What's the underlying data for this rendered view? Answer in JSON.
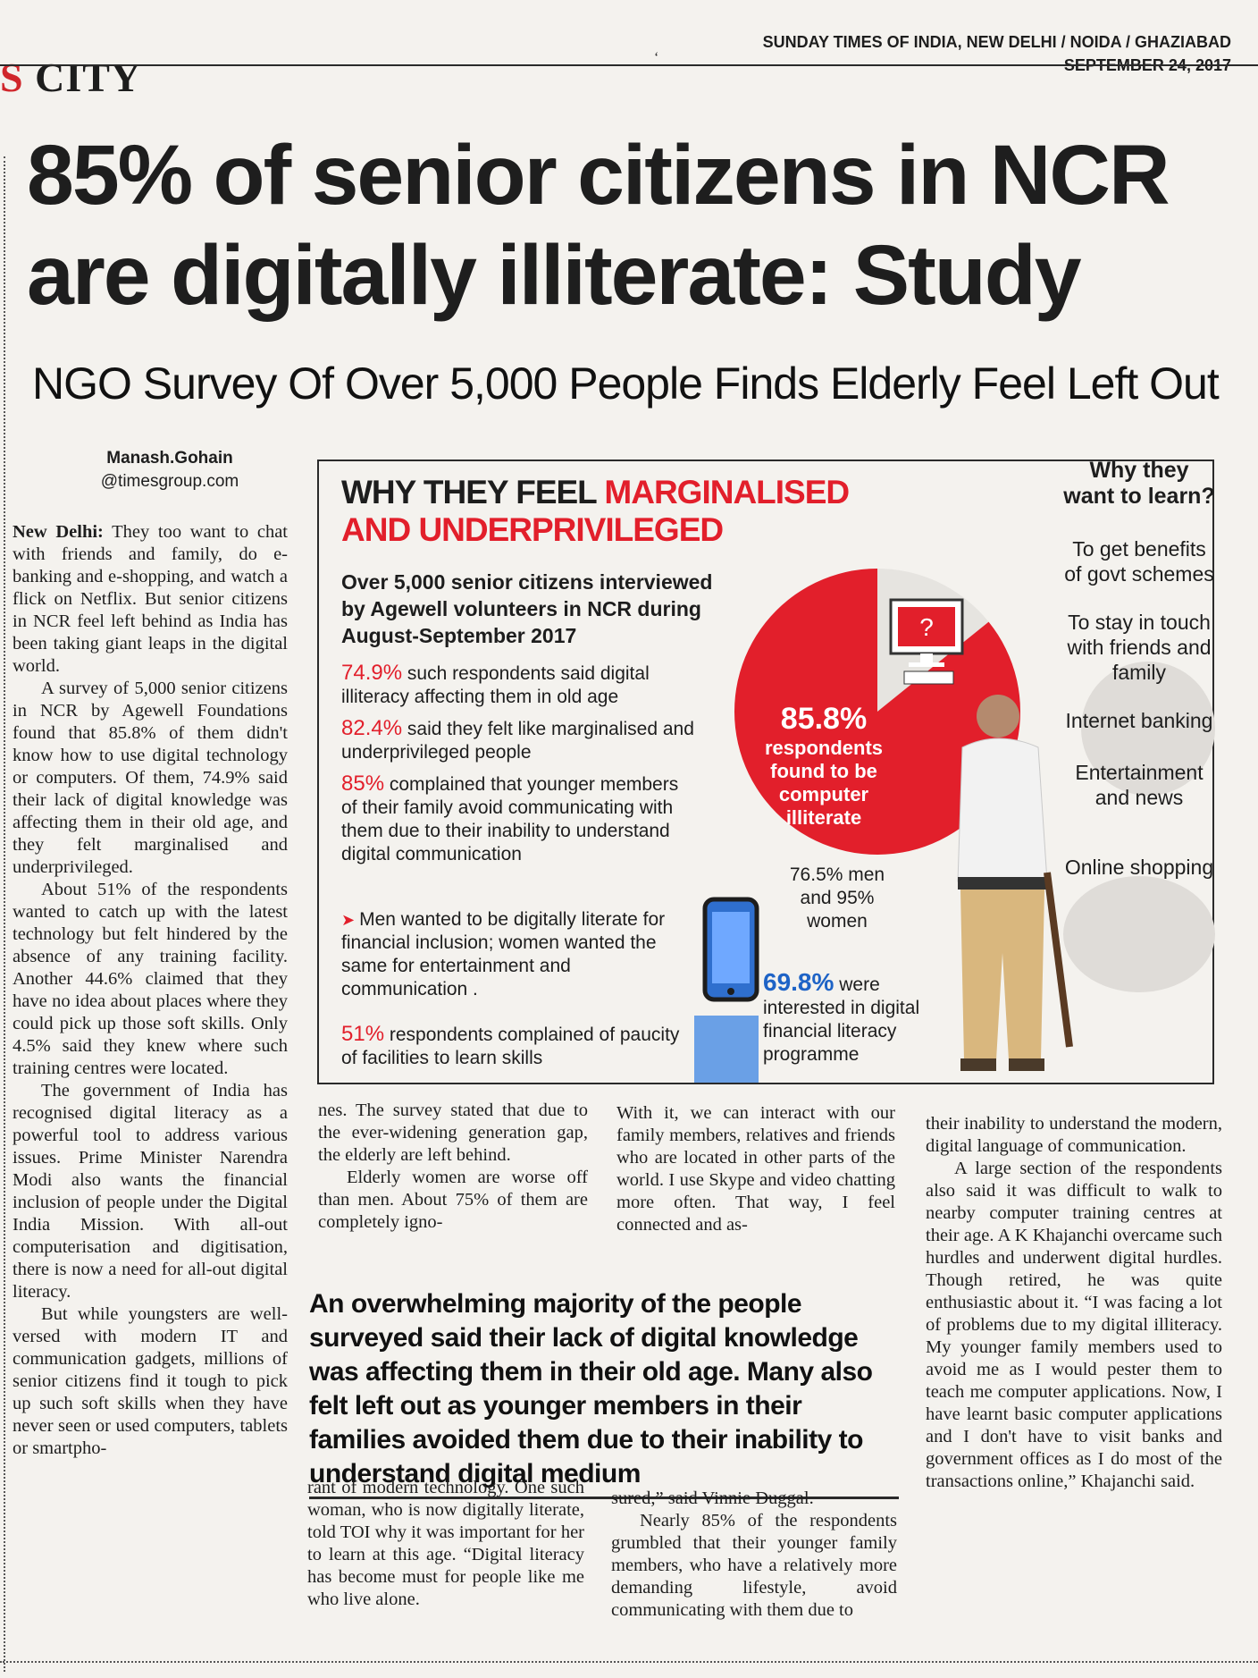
{
  "page": {
    "section": "CITY",
    "section_prefix": "S",
    "publication": "SUNDAY TIMES OF INDIA, NEW DELHI / NOIDA / GHAZIABAD",
    "date": "SEPTEMBER 24, 2017",
    "small_mark": "‘"
  },
  "article": {
    "headline_line1": "85% of senior citizens in NCR",
    "headline_line2": "are digitally illiterate: Study",
    "subhead": "NGO Survey Of Over 5,000 People Finds Elderly Feel Left Out",
    "byline_name": "Manash.Gohain",
    "byline_email": "@timesgroup.com",
    "dateline": "New Delhi:",
    "col1_p1": "They too want to chat with friends and family, do e-banking and e-shopping, and watch a flick on Netflix. But senior citizens in NCR feel left behind as India has been taking giant leaps in the digital world.",
    "col1_p2": "A survey of 5,000 senior citizens in NCR by Agewell Foundations found that 85.8% of them didn't know how to use digital technology or computers. Of them, 74.9% said their lack of digital knowledge was affecting them in their old age, and they felt marginalised and underprivileged.",
    "col1_p3": "About 51% of the respondents wanted to catch up with the latest technology but felt hindered by the absence of any training facility. Another 44.6% claimed that they have no idea about places where they could pick up those soft skills. Only 4.5% said they knew where such training centres were located.",
    "col1_p4": "The government of India has recognised digital literacy as a powerful tool to address various issues. Prime Minister Narendra Modi also wants the financial inclusion of people under the Digital India Mission. With all-out computerisation and digitisation, there is now a need for all-out digital literacy.",
    "col1_p5": "But while youngsters are well-versed with modern IT and communication gadgets, millions of senior citizens find it tough to pick up such soft skills when they have never seen or used computers, tablets or smartpho-",
    "col2_top_p1": "nes. The survey stated that due to the ever-widening generation gap, the elderly are left behind.",
    "col2_top_p2": "Elderly women are worse off than men. About 75% of them are completely igno-",
    "col3_top_p1": "With it, we can interact with our family members, relatives and friends who are located in other parts of the world. I use Skype and video chatting more often. That way, I feel connected and as-",
    "col4_p1": "their inability to understand the modern, digital language of communication.",
    "col4_p2": "A large section of the respondents also said it was difficult to walk to nearby computer training centres at their age. A K Khajanchi overcame such hurdles and underwent digital hurdles. Though retired, he was quite enthusiastic about it. “I was facing a lot of problems due to my digital illiteracy. My younger family members used to avoid me as I would pester them to teach me computer applications. Now, I have learnt basic computer applications and I don't have to visit banks and government offices as I do most of the transactions online,” Khajanchi said.",
    "pullquote": "An overwhelming majority of the people surveyed said their lack of digital knowledge was affecting them in their old age. Many also felt left out as younger members in their families avoided them due to their inability to understand digital medium",
    "col2_bot_p1": "rant of modern technology. One such woman, who is now digitally literate, told TOI why it was important for her to learn at this age. “Digital literacy has become must for people like me who live alone.",
    "col3_bot_p1": "sured,” said Vinnie Duggal.",
    "col3_bot_p2": "Nearly 85% of the respondents grumbled that their younger family members, who have a relatively more demanding lifestyle, avoid communicating with them due to"
  },
  "infographic": {
    "title_part1": "WHY THEY FEEL ",
    "title_part2": "MARGINALISED AND UNDERPRIVILEGED",
    "intro": "Over 5,000 senior citizens interviewed by Agewell volunteers in NCR during August-September 2017",
    "stats": [
      {
        "pct": "74.9%",
        "text": " such respondents said digital illiteracy affecting them in old age"
      },
      {
        "pct": "82.4%",
        "text": " said they felt like marginalised and underprivileged people"
      },
      {
        "pct": "85%",
        "text": " complained that younger members of their family avoid communicating with them due to their inability to understand digital communication"
      },
      {
        "pct": "51%",
        "text": " respondents complained of paucity of facilities to learn skills"
      }
    ],
    "arrow_note": "Men wanted to be digitally literate for financial inclusion; women wanted the same for entertainment and communication .",
    "pie_pct": "85.8%",
    "pie_label": "respondents found to be computer illiterate",
    "pie_value": 85.8,
    "monitor_symbol": "?",
    "men_women": "76.5% men and 95% women",
    "fin_pct": "69.8%",
    "fin_text": " were interested in digital financial literacy programme",
    "side_title": "Why they want to learn?",
    "reasons": [
      "To get benefits of govt schemes",
      "To stay in touch with friends and family",
      "Internet banking",
      "Entertainment and news",
      "Online shopping"
    ],
    "colors": {
      "accent_red": "#e21f2b",
      "accent_blue": "#1e63c6",
      "pie_rest": "#e6e4e0"
    }
  }
}
